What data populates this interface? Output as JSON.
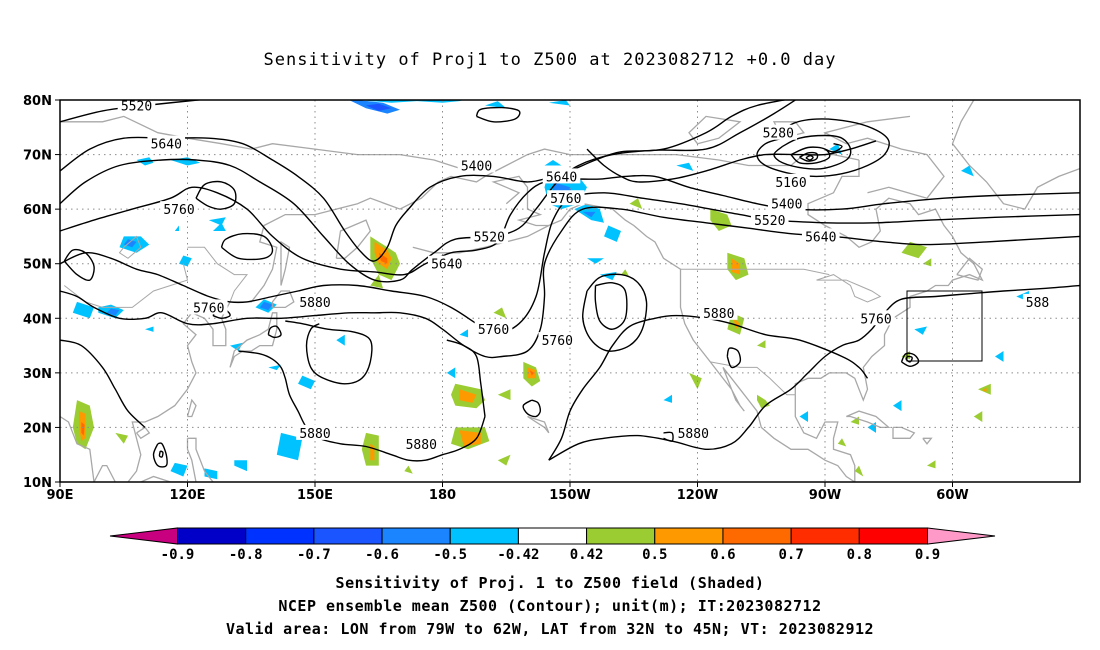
{
  "title": "Sensitivity of Proj1 to Z500 at 2023082712 +0.0 day",
  "map": {
    "lat_labels": [
      "80N",
      "70N",
      "60N",
      "50N",
      "40N",
      "30N",
      "20N",
      "10N"
    ],
    "lon_labels": [
      "90E",
      "120E",
      "150E",
      "180",
      "150W",
      "120W",
      "90W",
      "60W"
    ],
    "lon_range": [
      "90E",
      "30W"
    ],
    "lat_range": [
      "10N",
      "80N"
    ],
    "grid": "dotted",
    "contour_color": "#000000",
    "coastline_color": "#a8a8a8",
    "valid_box_color": "#000000"
  },
  "contour_labels": [
    {
      "text": "5520",
      "lon": 108,
      "lat": 79
    },
    {
      "text": "5640",
      "lon": 115,
      "lat": 72
    },
    {
      "text": "5760",
      "lon": 118,
      "lat": 60
    },
    {
      "text": "5760",
      "lon": 125,
      "lat": 42
    },
    {
      "text": "5880",
      "lon": 150,
      "lat": 43
    },
    {
      "text": "5400",
      "lon": -172,
      "lat": 68
    },
    {
      "text": "5520",
      "lon": -169,
      "lat": 55
    },
    {
      "text": "5640",
      "lon": -179,
      "lat": 50
    },
    {
      "text": "5760",
      "lon": -168,
      "lat": 38
    },
    {
      "text": "5640",
      "lon": -152,
      "lat": 66
    },
    {
      "text": "5760",
      "lon": -151,
      "lat": 62
    },
    {
      "text": "5760",
      "lon": -153,
      "lat": 36
    },
    {
      "text": "5880",
      "lon": -115,
      "lat": 41
    },
    {
      "text": "5280",
      "lon": -101,
      "lat": 74
    },
    {
      "text": "5160",
      "lon": -98,
      "lat": 65
    },
    {
      "text": "5400",
      "lon": -99,
      "lat": 61
    },
    {
      "text": "5520",
      "lon": -103,
      "lat": 58
    },
    {
      "text": "5640",
      "lon": -91,
      "lat": 55
    },
    {
      "text": "5760",
      "lon": -78,
      "lat": 40
    },
    {
      "text": "588",
      "lon": -40,
      "lat": 43
    },
    {
      "text": "5880",
      "lon": 150,
      "lat": 19
    },
    {
      "text": "5880",
      "lon": 175,
      "lat": 17
    },
    {
      "text": "5880",
      "lon": -121,
      "lat": 19
    }
  ],
  "colorbar": {
    "levels": [
      "-0.9",
      "-0.8",
      "-0.7",
      "-0.6",
      "-0.5",
      "-0.42",
      "0.42",
      "0.5",
      "0.6",
      "0.7",
      "0.8",
      "0.9"
    ],
    "colors": [
      "#c8007f",
      "#0000c8",
      "#0032ff",
      "#1a55ff",
      "#1a85ff",
      "#00c2ff",
      "#ffffff",
      "#9bcd32",
      "#ff9900",
      "#ff6a00",
      "#ff2d00",
      "#ff0000",
      "#ff99c8"
    ]
  },
  "caption": {
    "line1": "Sensitivity of Proj. 1 to Z500 field (Shaded)",
    "line2": "NCEP ensemble mean Z500 (Contour); unit(m); IT:2023082712",
    "line3": "Valid area: LON from 79W to 62W, LAT from 32N to 45N; VT: 2023082912"
  }
}
